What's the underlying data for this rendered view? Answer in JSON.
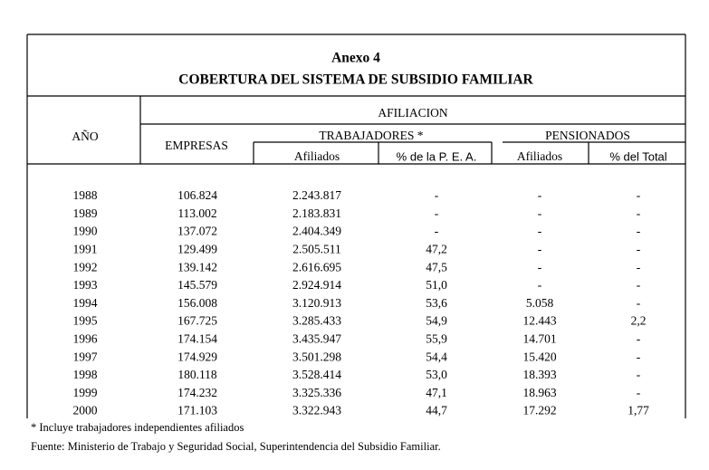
{
  "header": {
    "annex": "Anexo 4",
    "title": "COBERTURA DEL SISTEMA DE SUBSIDIO FAMILIAR"
  },
  "table": {
    "columns": {
      "year": "AÑO",
      "affiliation": "AFILIACION",
      "companies": "EMPRESAS",
      "workers": "TRABAJADORES *",
      "pensioners": "PENSIONADOS",
      "workers_affiliated": "Afiliados",
      "workers_pea": "% de la P. E. A.",
      "pensioners_affiliated": "Afiliados",
      "pensioners_total": "% del Total"
    },
    "rows": [
      [
        "1988",
        "106.824",
        "2.243.817",
        "-",
        "-",
        "-"
      ],
      [
        "1989",
        "113.002",
        "2.183.831",
        "-",
        "-",
        "-"
      ],
      [
        "1990",
        "137.072",
        "2.404.349",
        "-",
        "-",
        "-"
      ],
      [
        "1991",
        "129.499",
        "2.505.511",
        "47,2",
        "-",
        "-"
      ],
      [
        "1992",
        "139.142",
        "2.616.695",
        "47,5",
        "-",
        "-"
      ],
      [
        "1993",
        "145.579",
        "2.924.914",
        "51,0",
        "-",
        "-"
      ],
      [
        "1994",
        "156.008",
        "3.120.913",
        "53,6",
        "5.058",
        "-"
      ],
      [
        "1995",
        "167.725",
        "3.285.433",
        "54,9",
        "12.443",
        "2,2"
      ],
      [
        "1996",
        "174.154",
        "3.435.947",
        "55,9",
        "14.701",
        "-"
      ],
      [
        "1997",
        "174.929",
        "3.501.298",
        "54,4",
        "15.420",
        "-"
      ],
      [
        "1998",
        "180.118",
        "3.528.414",
        "53,0",
        "18.393",
        "-"
      ],
      [
        "1999",
        "174.232",
        "3.325.336",
        "47,1",
        "18.963",
        "-"
      ],
      [
        "2000",
        "171.103",
        "3.322.943",
        "44,7",
        "17.292",
        "1,77"
      ]
    ]
  },
  "footnotes": [
    "* Incluye trabajadores independientes afiliados",
    "Fuente: Ministerio de Trabajo y Seguridad Social, Superintendencia del Subsidio Familiar."
  ]
}
